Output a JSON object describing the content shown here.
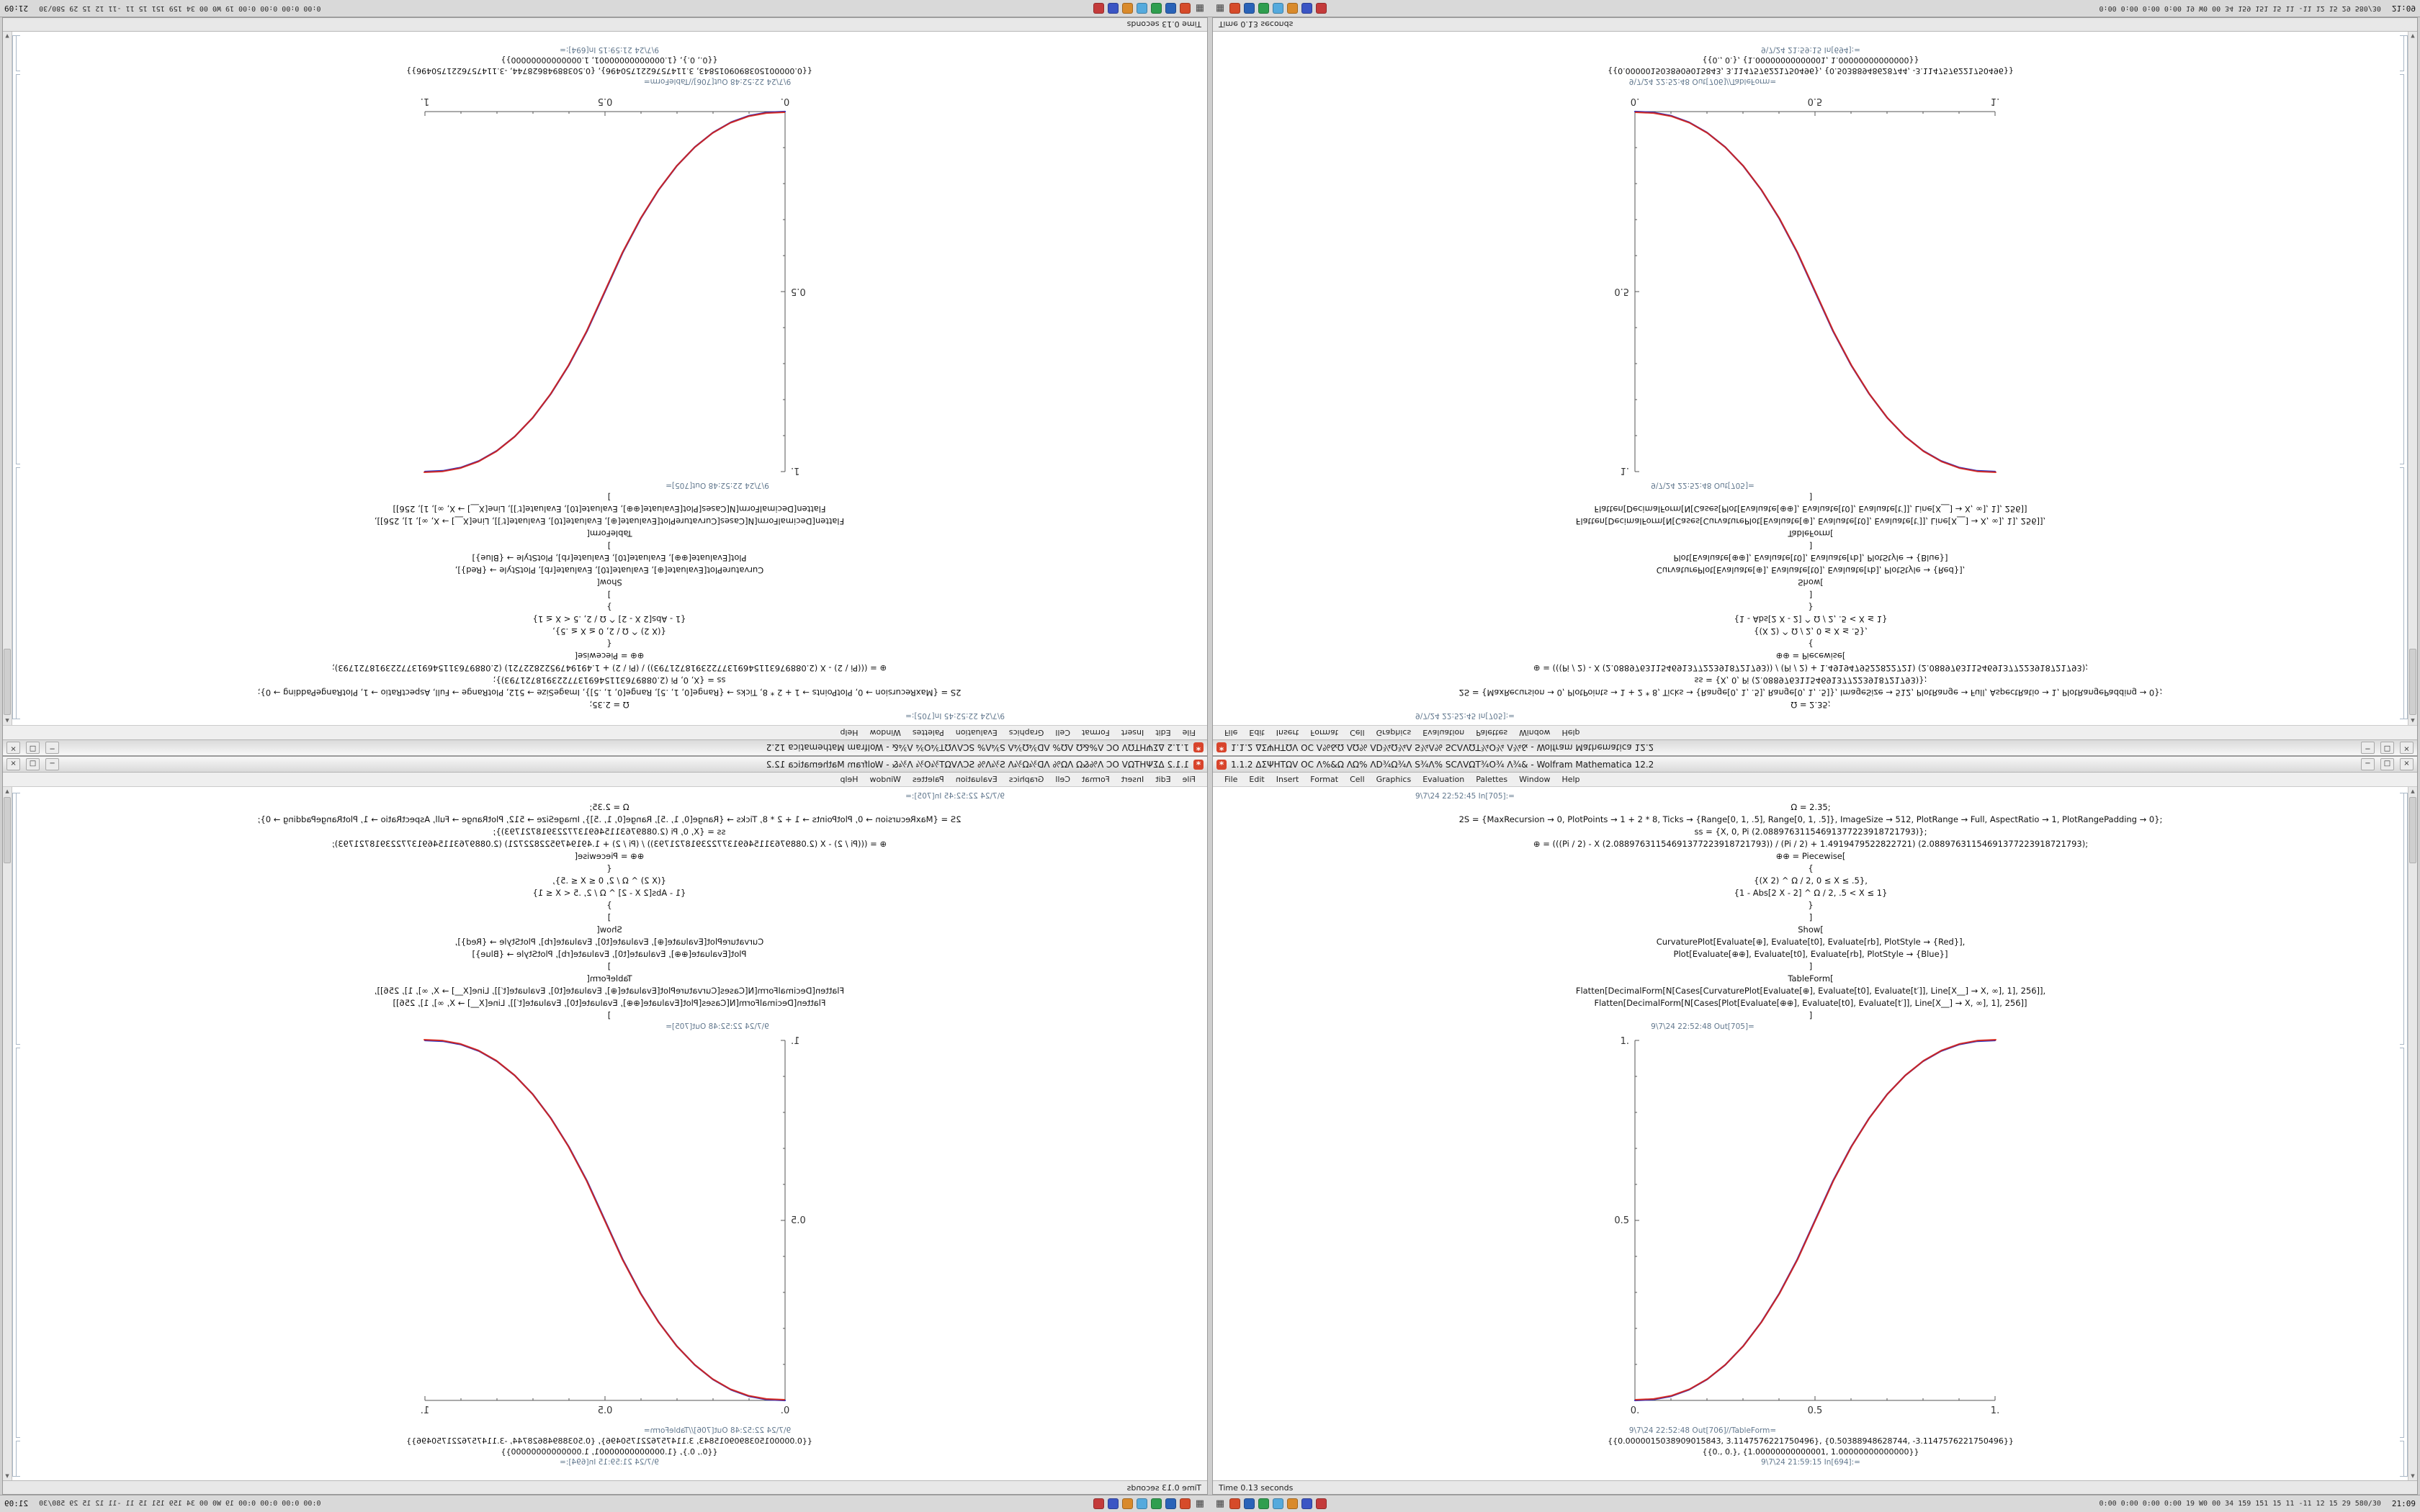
{
  "window": {
    "title": "1.1.2 ΔΣΨΗΤΩV ΟC Λ%&Ω ΛΩ% ΛD¾Ω¾Λ S¾Λ% SCΛVΩΤ¾Ο¾ Λ¾& - Wolfram Mathematica 12.2",
    "controls": {
      "minimize": "−",
      "maximize": "□",
      "close": "×"
    },
    "menus": [
      "File",
      "Edit",
      "Insert",
      "Format",
      "Cell",
      "Graphics",
      "Evaluation",
      "Palettes",
      "Window",
      "Help"
    ],
    "status_left": "Time 0.13 seconds",
    "scroll_up": "▲",
    "scroll_down": "▼",
    "app_icon_glyph": "*"
  },
  "notebook": {
    "in_label": "9\\7\\24 22:52:45 In[705]:=",
    "code_lines": [
      "Ω = 2.35;",
      "2S = {MaxRecursion → 0, PlotPoints → 1 + 2 * 8, Ticks → {Range[0, 1, .5], Range[0, 1, .5]}, ImageSize → 512, PlotRange → Full, AspectRatio → 1, PlotRangePadding → 0};",
      "ss = {X, 0, Pi (2.08897631154691377223918721793)};",
      "⊕ = (((Pi / 2) - X (2.08897631154691377223918721793)) / (Pi / 2) + 1.4919479522822721) (2.08897631154691377223918721793);",
      "⊕⊕ = Piecewise[",
      "{",
      "{(X 2) ^ Ω / 2, 0 ≤ X ≤ .5},",
      "{1 - Abs[2 X - 2] ^ Ω / 2, .5 < X ≤ 1}",
      "}",
      "]",
      "Show[",
      "CurvaturePlot[Evaluate[⊕], Evaluate[t0], Evaluate[rb], PlotStyle → {Red}],",
      "Plot[Evaluate[⊕⊕], Evaluate[t0], Evaluate[rb], PlotStyle → {Blue}]",
      "]",
      "TableForm[",
      "Flatten[DecimalForm[N[Cases[CurvaturePlot[Evaluate[⊕], Evaluate[t0], Evaluate[t′]], Line[X__] → X, ∞], 1], 256]],",
      "Flatten[DecimalForm[N[Cases[Plot[Evaluate[⊕⊕], Evaluate[t0], Evaluate[t′]], Line[X__] → X, ∞], 1], 256]]",
      "]"
    ],
    "out_plot_label": "9\\7\\24 22:52:48 Out[705]=",
    "out_table_label": "9\\7\\24 22:52:48 Out[706]//TableForm=",
    "table_rows": [
      "{{0.0000015038909015843, 3.1147576221750496}, {0.50388948628744, -3.1147576221750496}}",
      "{{0., 0.}, {1.00000000000001, 1.00000000000000}}"
    ],
    "next_in_label": "9\\7\\24 21:59:15 In[694]:="
  },
  "taskbar": {
    "start_glyph": "▦",
    "launcher_icons": [
      {
        "name": "browser-icon",
        "color": "#d64b2a"
      },
      {
        "name": "files-icon",
        "color": "#2a63b8"
      },
      {
        "name": "terminal-icon",
        "color": "#2f9e4f"
      },
      {
        "name": "chat-icon",
        "color": "#55aadd"
      },
      {
        "name": "music-icon",
        "color": "#d98a2b"
      },
      {
        "name": "editor-icon",
        "color": "#3b55c4"
      },
      {
        "name": "mail-icon",
        "color": "#c43b3b"
      }
    ],
    "sysmon_text": "0:00 0:00 0:00 0:00 19 W0 00 34 159 151 15 11 -11 12 15 29 580/30",
    "clock": "21:09"
  },
  "chart_data": {
    "type": "line",
    "title": "",
    "xlabel": "",
    "ylabel": "",
    "xlim": [
      0,
      1
    ],
    "ylim": [
      0,
      1
    ],
    "grid": false,
    "legend": "none",
    "xtick_labels": [
      "0.",
      "0.5",
      "1."
    ],
    "ytick_labels": [
      "0.5",
      "1."
    ],
    "x": [
      0,
      0.05,
      0.1,
      0.15,
      0.2,
      0.25,
      0.3,
      0.35,
      0.4,
      0.45,
      0.5,
      0.55,
      0.6,
      0.65,
      0.7,
      0.75,
      0.8,
      0.85,
      0.9,
      0.95,
      1
    ],
    "series": [
      {
        "name": "CurvaturePlot Red",
        "color": "#dd2211",
        "y": [
          0,
          0.0022,
          0.0114,
          0.0295,
          0.058,
          0.098,
          0.1502,
          0.2163,
          0.2959,
          0.3903,
          0.5,
          0.6097,
          0.7041,
          0.7837,
          0.8498,
          0.902,
          0.942,
          0.9705,
          0.9886,
          0.9978,
          1
        ]
      },
      {
        "name": "Plot Blue",
        "color": "#2233cc",
        "y": [
          0,
          0.0022,
          0.0114,
          0.0295,
          0.058,
          0.098,
          0.1502,
          0.2163,
          0.2959,
          0.3903,
          0.5,
          0.6097,
          0.7041,
          0.7837,
          0.8498,
          0.902,
          0.942,
          0.9705,
          0.9886,
          0.9978,
          1
        ]
      }
    ]
  }
}
